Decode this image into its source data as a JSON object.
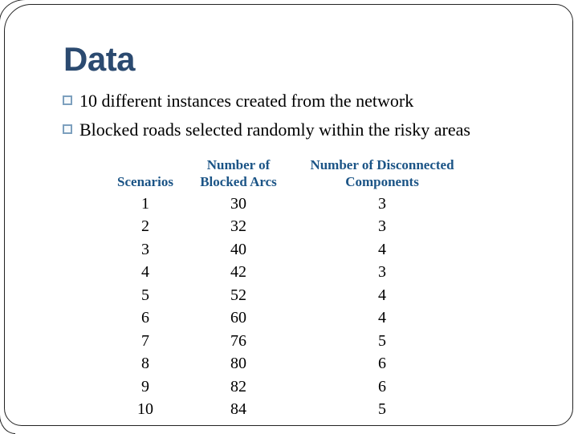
{
  "slide": {
    "title": "Data",
    "bullets": [
      "10 different instances created from the network",
      "Blocked roads selected randomly within the risky areas"
    ]
  },
  "table": {
    "headers": [
      "Scenarios",
      "Number of\nBlocked Arcs",
      "Number of Disconnected\nComponents"
    ],
    "rows": [
      [
        "1",
        "30",
        "3"
      ],
      [
        "2",
        "32",
        "3"
      ],
      [
        "3",
        "40",
        "4"
      ],
      [
        "4",
        "42",
        "3"
      ],
      [
        "5",
        "52",
        "4"
      ],
      [
        "6",
        "60",
        "4"
      ],
      [
        "7",
        "76",
        "5"
      ],
      [
        "8",
        "80",
        "6"
      ],
      [
        "9",
        "82",
        "6"
      ],
      [
        "10",
        "84",
        "5"
      ]
    ]
  },
  "colors": {
    "title_text": "#2b4a70",
    "table_header_text": "#1b5486",
    "bullet_square_border": "#7da0be",
    "body_text": "#000000",
    "frame_border": "#222222",
    "background": "#ffffff"
  }
}
